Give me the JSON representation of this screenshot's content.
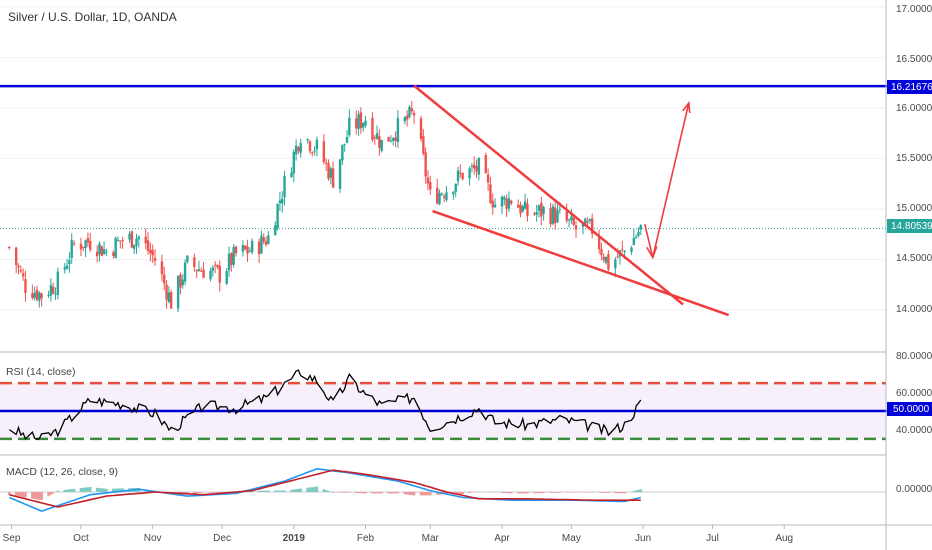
{
  "header": {
    "title": "Silver / U.S. Dollar, 1D, OANDA"
  },
  "colors": {
    "bull": "#26a69a",
    "bear": "#ef5350",
    "red_line": "#f03c3c",
    "blue_line": "#0000d8",
    "rsi_line": "#000000",
    "macd_line": "#2196f3",
    "signal_line": "#c4202a",
    "overbought": "#e74c3c",
    "oversold": "#3a8a3a"
  },
  "price_axis": {
    "ticks": [
      "17.00000",
      "16.50000",
      "16.00000",
      "15.50000",
      "15.00000",
      "14.50000",
      "14.00000"
    ],
    "resistance_label": "16.21676",
    "current_label": "14.80539"
  },
  "rsi_panel": {
    "title": "RSI (14, close)",
    "ticks": [
      "80.0000",
      "60.0000",
      "40.0000"
    ],
    "level_label": "50.0000"
  },
  "macd_panel": {
    "title": "MACD (12, 26, close, 9)",
    "ticks": [
      "0.00000"
    ]
  },
  "time_axis": {
    "labels": [
      "Sep",
      "Oct",
      "Nov",
      "Dec",
      "2019",
      "Feb",
      "Mar",
      "Apr",
      "May",
      "Jun",
      "Jul",
      "Aug"
    ]
  },
  "annotations": {
    "resistance": 16.21676,
    "wedge_upper": [
      [
        16.22,
        "Feb 22"
      ],
      [
        14.5,
        "Jun 1"
      ]
    ],
    "wedge_lower": [
      [
        14.98,
        "Mar 2"
      ],
      [
        13.95,
        "Jul 8"
      ]
    ],
    "projection_target": 16.05
  },
  "chart_data": {
    "type": "candlestick",
    "title": "Silver / U.S. Dollar, 1D, OANDA",
    "symbol": "XAGUSD",
    "ylim": [
      13.6,
      17.05
    ],
    "close_anchors": [
      {
        "x": "2018-08-31",
        "y": 14.62
      },
      {
        "x": "2018-09-07",
        "y": 14.24
      },
      {
        "x": "2018-09-14",
        "y": 14.15
      },
      {
        "x": "2018-09-21",
        "y": 14.28
      },
      {
        "x": "2018-09-28",
        "y": 14.65
      },
      {
        "x": "2018-10-05",
        "y": 14.68
      },
      {
        "x": "2018-10-12",
        "y": 14.58
      },
      {
        "x": "2018-10-19",
        "y": 14.7
      },
      {
        "x": "2018-10-26",
        "y": 14.72
      },
      {
        "x": "2018-11-02",
        "y": 14.5
      },
      {
        "x": "2018-11-09",
        "y": 14.08
      },
      {
        "x": "2018-11-16",
        "y": 14.45
      },
      {
        "x": "2018-11-23",
        "y": 14.4
      },
      {
        "x": "2018-11-30",
        "y": 14.35
      },
      {
        "x": "2018-12-07",
        "y": 14.55
      },
      {
        "x": "2018-12-14",
        "y": 14.6
      },
      {
        "x": "2018-12-21",
        "y": 14.72
      },
      {
        "x": "2018-12-28",
        "y": 15.25
      },
      {
        "x": "2019-01-04",
        "y": 15.75
      },
      {
        "x": "2019-01-11",
        "y": 15.6
      },
      {
        "x": "2019-01-18",
        "y": 15.3
      },
      {
        "x": "2019-01-25",
        "y": 15.8
      },
      {
        "x": "2019-02-01",
        "y": 15.9
      },
      {
        "x": "2019-02-08",
        "y": 15.65
      },
      {
        "x": "2019-02-15",
        "y": 15.8
      },
      {
        "x": "2019-02-22",
        "y": 15.95
      },
      {
        "x": "2019-03-01",
        "y": 15.12
      },
      {
        "x": "2019-03-08",
        "y": 15.2
      },
      {
        "x": "2019-03-15",
        "y": 15.35
      },
      {
        "x": "2019-03-22",
        "y": 15.4
      },
      {
        "x": "2019-03-29",
        "y": 15.05
      },
      {
        "x": "2019-04-05",
        "y": 15.1
      },
      {
        "x": "2019-04-12",
        "y": 14.95
      },
      {
        "x": "2019-04-19",
        "y": 14.98
      },
      {
        "x": "2019-04-26",
        "y": 14.92
      },
      {
        "x": "2019-05-03",
        "y": 14.8
      },
      {
        "x": "2019-05-10",
        "y": 14.8
      },
      {
        "x": "2019-05-17",
        "y": 14.45
      },
      {
        "x": "2019-05-24",
        "y": 14.58
      },
      {
        "x": "2019-05-31",
        "y": 14.81
      }
    ],
    "rsi": {
      "levels": [
        70,
        50,
        30
      ],
      "ylim": [
        22,
        88
      ],
      "anchors": [
        {
          "x": "2018-08-31",
          "y": 38
        },
        {
          "x": "2018-09-07",
          "y": 32
        },
        {
          "x": "2018-09-14",
          "y": 30
        },
        {
          "x": "2018-09-21",
          "y": 36
        },
        {
          "x": "2018-10-05",
          "y": 58
        },
        {
          "x": "2018-10-19",
          "y": 55
        },
        {
          "x": "2018-11-02",
          "y": 48
        },
        {
          "x": "2018-11-09",
          "y": 36
        },
        {
          "x": "2018-11-23",
          "y": 54
        },
        {
          "x": "2018-12-07",
          "y": 52
        },
        {
          "x": "2018-12-21",
          "y": 60
        },
        {
          "x": "2019-01-04",
          "y": 78
        },
        {
          "x": "2019-01-11",
          "y": 72
        },
        {
          "x": "2019-01-18",
          "y": 55
        },
        {
          "x": "2019-01-25",
          "y": 73
        },
        {
          "x": "2019-02-01",
          "y": 62
        },
        {
          "x": "2019-02-08",
          "y": 54
        },
        {
          "x": "2019-02-22",
          "y": 60
        },
        {
          "x": "2019-03-01",
          "y": 38
        },
        {
          "x": "2019-03-08",
          "y": 42
        },
        {
          "x": "2019-03-22",
          "y": 52
        },
        {
          "x": "2019-03-29",
          "y": 42
        },
        {
          "x": "2019-04-12",
          "y": 40
        },
        {
          "x": "2019-04-26",
          "y": 44
        },
        {
          "x": "2019-05-03",
          "y": 42
        },
        {
          "x": "2019-05-17",
          "y": 35
        },
        {
          "x": "2019-05-24",
          "y": 40
        },
        {
          "x": "2019-05-31",
          "y": 56
        }
      ]
    },
    "macd": {
      "ylim": [
        -0.22,
        0.22
      ],
      "macd_anchors": [
        {
          "x": "2018-08-31",
          "y": -0.04
        },
        {
          "x": "2018-09-14",
          "y": -0.14
        },
        {
          "x": "2018-10-05",
          "y": -0.02
        },
        {
          "x": "2018-10-26",
          "y": 0.02
        },
        {
          "x": "2018-11-16",
          "y": -0.03
        },
        {
          "x": "2018-12-07",
          "y": -0.01
        },
        {
          "x": "2018-12-28",
          "y": 0.08
        },
        {
          "x": "2019-01-11",
          "y": 0.17
        },
        {
          "x": "2019-01-25",
          "y": 0.14
        },
        {
          "x": "2019-02-15",
          "y": 0.08
        },
        {
          "x": "2019-03-01",
          "y": 0.01
        },
        {
          "x": "2019-03-15",
          "y": -0.04
        },
        {
          "x": "2019-04-05",
          "y": -0.06
        },
        {
          "x": "2019-05-03",
          "y": -0.06
        },
        {
          "x": "2019-05-24",
          "y": -0.07
        },
        {
          "x": "2019-05-31",
          "y": -0.04
        }
      ],
      "signal_anchors": [
        {
          "x": "2018-08-31",
          "y": -0.02
        },
        {
          "x": "2018-09-21",
          "y": -0.11
        },
        {
          "x": "2018-10-12",
          "y": -0.03
        },
        {
          "x": "2018-11-02",
          "y": 0.0
        },
        {
          "x": "2018-11-23",
          "y": -0.02
        },
        {
          "x": "2018-12-14",
          "y": 0.01
        },
        {
          "x": "2019-01-04",
          "y": 0.1
        },
        {
          "x": "2019-01-18",
          "y": 0.16
        },
        {
          "x": "2019-02-01",
          "y": 0.13
        },
        {
          "x": "2019-02-22",
          "y": 0.07
        },
        {
          "x": "2019-03-08",
          "y": 0.0
        },
        {
          "x": "2019-03-22",
          "y": -0.05
        },
        {
          "x": "2019-04-12",
          "y": -0.05
        },
        {
          "x": "2019-05-10",
          "y": -0.06
        },
        {
          "x": "2019-05-31",
          "y": -0.06
        }
      ]
    },
    "x_range": [
      "2018-08-27",
      "2019-09-14"
    ]
  }
}
